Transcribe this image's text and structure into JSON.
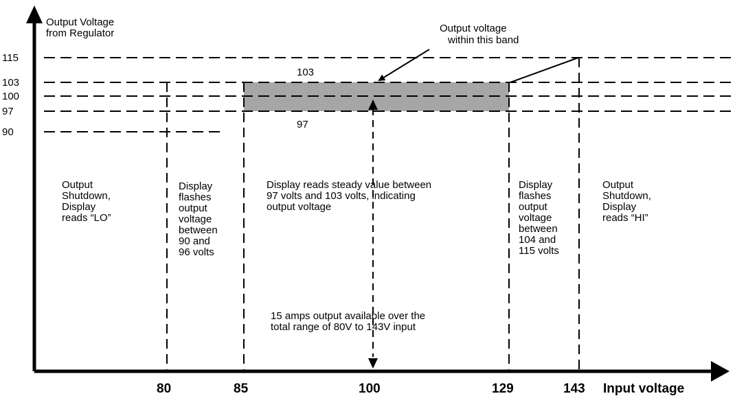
{
  "y_axis": {
    "title_lines": [
      "Output Voltage",
      "from Regulator"
    ],
    "ticks": [
      "115",
      "103",
      "100",
      "97",
      "90"
    ]
  },
  "x_axis": {
    "ticks": [
      "80",
      "85",
      "100",
      "129",
      "143"
    ],
    "label": "Input voltage"
  },
  "band": {
    "callout_lines": [
      "Output voltage",
      "within this band"
    ],
    "upper_label": "103",
    "lower_label": "97",
    "fill_color": "#a6a6a6"
  },
  "regions": {
    "low_shutdown": [
      "Output",
      "Shutdown,",
      "Display",
      "reads “LO”"
    ],
    "low_flash": [
      "Display",
      "flashes",
      "output",
      "voltage",
      "between",
      "90 and",
      "96 volts"
    ],
    "steady": [
      "Display reads steady value between",
      "97 volts and 103 volts, indicating",
      "output voltage"
    ],
    "high_flash": [
      "Display",
      "flashes",
      "output",
      "voltage",
      "between",
      "104 and",
      "115 volts"
    ],
    "high_shutdown": [
      "Output",
      "Shutdown,",
      "Display",
      "reads “HI”"
    ]
  },
  "current_note": [
    "15 amps output available over the",
    "total range of 80V to 143V input"
  ]
}
